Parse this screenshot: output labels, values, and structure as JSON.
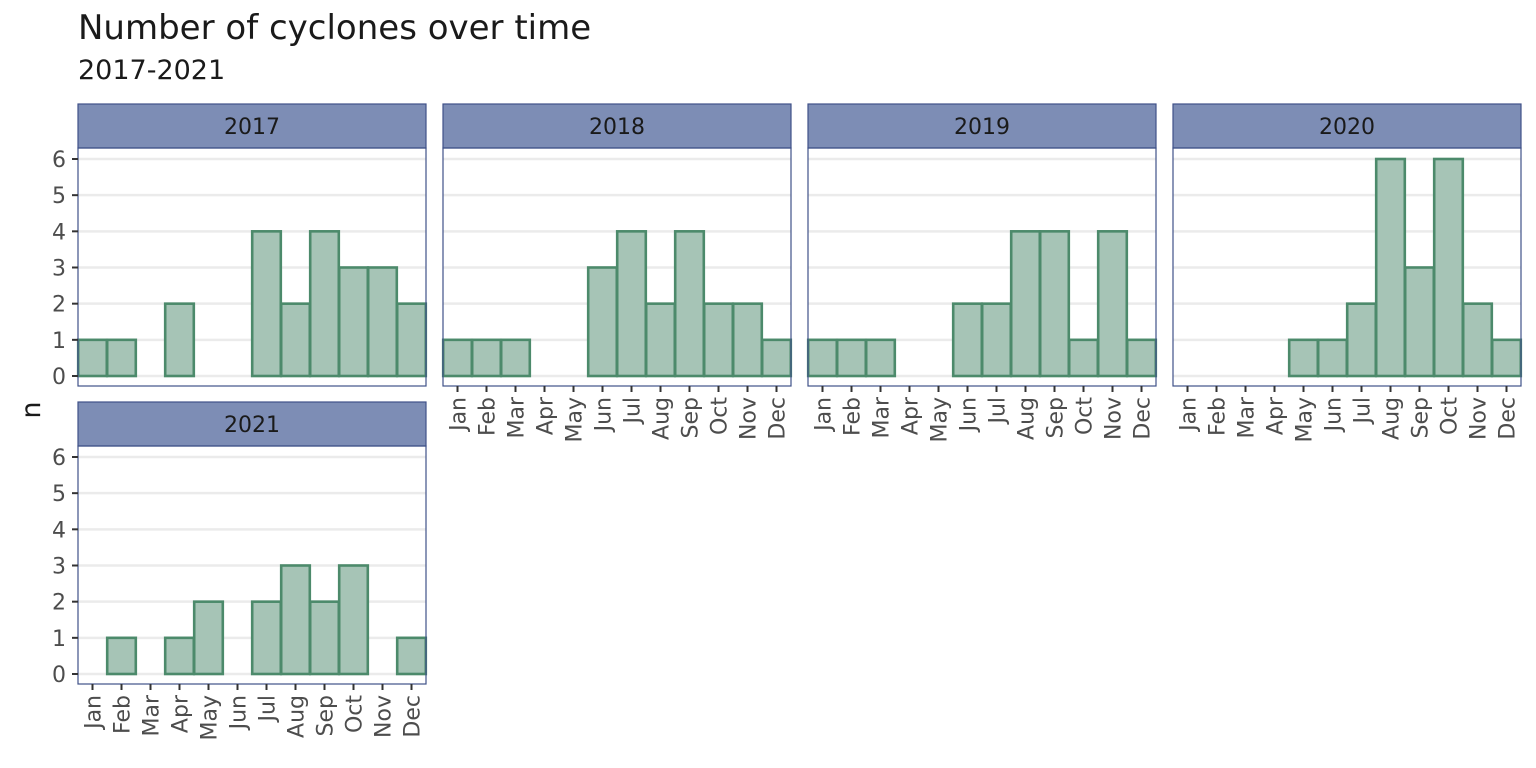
{
  "chart_data": {
    "type": "bar",
    "title": "Number of cyclones over time",
    "subtitle": "2017-2021",
    "ylabel": "n",
    "xlabel": "",
    "ylim": [
      0,
      6
    ],
    "y_ticks": [
      0,
      1,
      2,
      3,
      4,
      5,
      6
    ],
    "grid": true,
    "legend": "none",
    "colors": {
      "bar_fill": "#a6c4b6",
      "bar_outline": "#4c8a6b",
      "strip_fill": "#7d8db5",
      "panel_border": "#3f5288"
    },
    "categories": [
      "Jan",
      "Feb",
      "Mar",
      "Apr",
      "May",
      "Jun",
      "Jul",
      "Aug",
      "Sep",
      "Oct",
      "Nov",
      "Dec"
    ],
    "facets": [
      {
        "label": "2017",
        "values": [
          1,
          1,
          0,
          2,
          0,
          0,
          4,
          2,
          4,
          3,
          3,
          2
        ]
      },
      {
        "label": "2018",
        "values": [
          1,
          1,
          1,
          0,
          0,
          3,
          4,
          2,
          4,
          2,
          2,
          1
        ]
      },
      {
        "label": "2019",
        "values": [
          1,
          1,
          1,
          0,
          0,
          2,
          2,
          4,
          4,
          1,
          4,
          1
        ]
      },
      {
        "label": "2020",
        "values": [
          0,
          0,
          0,
          0,
          1,
          1,
          2,
          6,
          3,
          6,
          2,
          1
        ]
      },
      {
        "label": "2021",
        "values": [
          0,
          1,
          0,
          1,
          2,
          0,
          2,
          3,
          2,
          3,
          0,
          1
        ]
      }
    ]
  }
}
